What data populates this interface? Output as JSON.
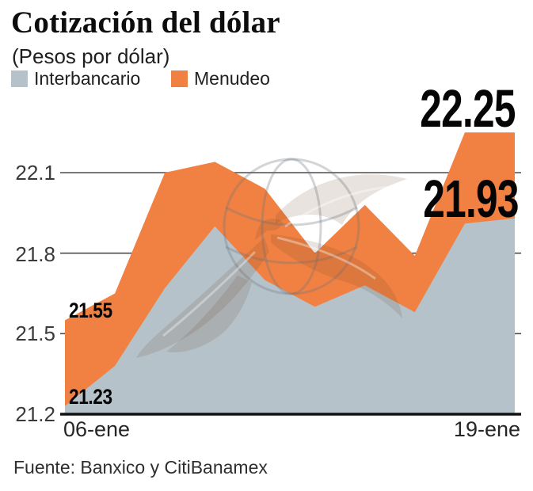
{
  "header": {
    "title": "Cotización del dólar",
    "subtitle": "(Pesos por dólar)"
  },
  "legend": {
    "items": [
      {
        "label": "Interbancario",
        "color": "#b6c2ca"
      },
      {
        "label": "Menudeo",
        "color": "#f08142"
      }
    ]
  },
  "chart_data": {
    "type": "area",
    "title": "Cotización del dólar",
    "subtitle": "(Pesos por dólar)",
    "num_points": 10,
    "x_axis_labels": {
      "first": "06-ene",
      "last": "19-ene"
    },
    "series": [
      {
        "name": "Menudeo",
        "color": "#f08142",
        "values": [
          21.55,
          21.65,
          22.1,
          22.14,
          22.04,
          21.8,
          21.98,
          21.79,
          22.25,
          22.25
        ]
      },
      {
        "name": "Interbancario",
        "color": "#b6c2ca",
        "values": [
          21.23,
          21.38,
          21.67,
          21.9,
          21.7,
          21.6,
          21.68,
          21.58,
          21.91,
          21.93
        ]
      }
    ],
    "ylim": [
      21.2,
      22.3
    ],
    "yticks": [
      {
        "value": 22.1,
        "label": "22.1"
      },
      {
        "value": 21.8,
        "label": "21.8"
      },
      {
        "value": 21.5,
        "label": "21.5"
      },
      {
        "value": 21.2,
        "label": "21.2"
      }
    ],
    "grid": "horizontal",
    "legend_position": "top-left",
    "annotations": [
      {
        "text": "22.25",
        "series": "Menudeo",
        "position": "end"
      },
      {
        "text": "21.93",
        "series": "Interbancario",
        "position": "end"
      },
      {
        "text": "21.55",
        "series": "Menudeo",
        "position": "start"
      },
      {
        "text": "21.23",
        "series": "Interbancario",
        "position": "start"
      }
    ],
    "colors": {
      "grid": "#4d4d4d",
      "baseline": "#111111"
    }
  },
  "footer": {
    "source": "Fuente: Banxico y CitiBanamex"
  }
}
